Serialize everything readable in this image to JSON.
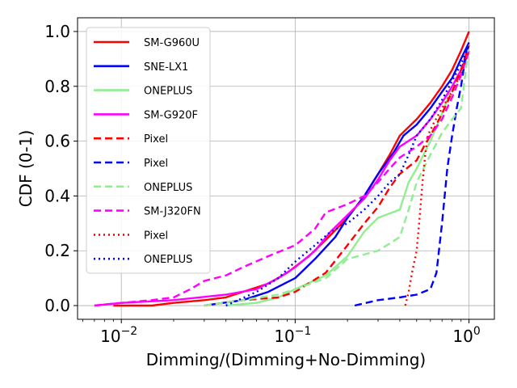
{
  "chart_data": {
    "type": "line",
    "title": "",
    "xlabel": "Dimming/(Dimming+No-Dimming)",
    "ylabel": "CDF (0-1)",
    "xscale": "log",
    "xlim": [
      0.0056,
      1.4
    ],
    "ylim": [
      -0.05,
      1.05
    ],
    "grid": true,
    "legend_position": "top-left",
    "x_ticks": [
      {
        "value": 0.01,
        "base": "10",
        "exp": "−2"
      },
      {
        "value": 0.1,
        "base": "10",
        "exp": "−1"
      },
      {
        "value": 1,
        "base": "10",
        "exp": "0"
      }
    ],
    "y_ticks": [
      {
        "value": 0.0,
        "label": "0.0"
      },
      {
        "value": 0.2,
        "label": "0.2"
      },
      {
        "value": 0.4,
        "label": "0.4"
      },
      {
        "value": 0.6,
        "label": "0.6"
      },
      {
        "value": 0.8,
        "label": "0.8"
      },
      {
        "value": 1.0,
        "label": "1.0"
      }
    ],
    "series": [
      {
        "name": "SM-G960U",
        "color": "#ff0000",
        "style": "solid",
        "points": [
          [
            0.009,
            0.0
          ],
          [
            0.015,
            0.0
          ],
          [
            0.02,
            0.01
          ],
          [
            0.03,
            0.02
          ],
          [
            0.04,
            0.03
          ],
          [
            0.05,
            0.05
          ],
          [
            0.07,
            0.08
          ],
          [
            0.09,
            0.12
          ],
          [
            0.12,
            0.18
          ],
          [
            0.15,
            0.24
          ],
          [
            0.2,
            0.32
          ],
          [
            0.25,
            0.4
          ],
          [
            0.3,
            0.48
          ],
          [
            0.35,
            0.55
          ],
          [
            0.4,
            0.62
          ],
          [
            0.5,
            0.68
          ],
          [
            0.6,
            0.74
          ],
          [
            0.7,
            0.8
          ],
          [
            0.8,
            0.86
          ],
          [
            0.9,
            0.93
          ],
          [
            1.0,
            1.0
          ]
        ]
      },
      {
        "name": "SNE-LX1",
        "color": "#0000ff",
        "style": "solid",
        "points": [
          [
            0.03,
            0.0
          ],
          [
            0.05,
            0.02
          ],
          [
            0.07,
            0.05
          ],
          [
            0.1,
            0.1
          ],
          [
            0.13,
            0.17
          ],
          [
            0.17,
            0.25
          ],
          [
            0.2,
            0.32
          ],
          [
            0.25,
            0.4
          ],
          [
            0.3,
            0.48
          ],
          [
            0.37,
            0.56
          ],
          [
            0.42,
            0.62
          ],
          [
            0.5,
            0.66
          ],
          [
            0.6,
            0.72
          ],
          [
            0.7,
            0.78
          ],
          [
            0.8,
            0.83
          ],
          [
            0.9,
            0.9
          ],
          [
            1.0,
            0.96
          ]
        ]
      },
      {
        "name": "ONEPLUS",
        "color": "#90ee90",
        "style": "solid",
        "points": [
          [
            0.04,
            0.0
          ],
          [
            0.06,
            0.01
          ],
          [
            0.08,
            0.03
          ],
          [
            0.1,
            0.06
          ],
          [
            0.15,
            0.11
          ],
          [
            0.2,
            0.18
          ],
          [
            0.25,
            0.27
          ],
          [
            0.3,
            0.32
          ],
          [
            0.4,
            0.35
          ],
          [
            0.45,
            0.45
          ],
          [
            0.5,
            0.5
          ],
          [
            0.6,
            0.6
          ],
          [
            0.7,
            0.7
          ],
          [
            0.8,
            0.8
          ],
          [
            0.9,
            0.85
          ],
          [
            1.0,
            0.92
          ]
        ]
      },
      {
        "name": "SM-G920F",
        "color": "#ff00ff",
        "style": "solid",
        "points": [
          [
            0.007,
            0.0
          ],
          [
            0.01,
            0.01
          ],
          [
            0.02,
            0.02
          ],
          [
            0.04,
            0.04
          ],
          [
            0.06,
            0.06
          ],
          [
            0.08,
            0.1
          ],
          [
            0.1,
            0.14
          ],
          [
            0.13,
            0.2
          ],
          [
            0.16,
            0.27
          ],
          [
            0.2,
            0.33
          ],
          [
            0.25,
            0.39
          ],
          [
            0.3,
            0.46
          ],
          [
            0.35,
            0.53
          ],
          [
            0.4,
            0.58
          ],
          [
            0.5,
            0.62
          ],
          [
            0.6,
            0.68
          ],
          [
            0.7,
            0.74
          ],
          [
            0.8,
            0.8
          ],
          [
            0.9,
            0.86
          ],
          [
            1.0,
            0.93
          ]
        ]
      },
      {
        "name": "Pixel",
        "color": "#ff0000",
        "style": "dashed",
        "points": [
          [
            0.03,
            0.0
          ],
          [
            0.05,
            0.02
          ],
          [
            0.08,
            0.03
          ],
          [
            0.1,
            0.05
          ],
          [
            0.15,
            0.12
          ],
          [
            0.2,
            0.22
          ],
          [
            0.25,
            0.3
          ],
          [
            0.3,
            0.36
          ],
          [
            0.35,
            0.43
          ],
          [
            0.4,
            0.48
          ],
          [
            0.5,
            0.53
          ],
          [
            0.55,
            0.58
          ],
          [
            0.6,
            0.62
          ],
          [
            0.7,
            0.7
          ],
          [
            0.8,
            0.78
          ],
          [
            0.9,
            0.86
          ],
          [
            1.0,
            0.95
          ]
        ]
      },
      {
        "name": "Pixel",
        "color": "#0000ff",
        "style": "dashed",
        "points": [
          [
            0.22,
            0.0
          ],
          [
            0.3,
            0.02
          ],
          [
            0.4,
            0.03
          ],
          [
            0.5,
            0.04
          ],
          [
            0.6,
            0.06
          ],
          [
            0.65,
            0.12
          ],
          [
            0.7,
            0.3
          ],
          [
            0.75,
            0.5
          ],
          [
            0.8,
            0.62
          ],
          [
            0.85,
            0.72
          ],
          [
            0.9,
            0.8
          ],
          [
            0.95,
            0.9
          ],
          [
            1.0,
            0.96
          ]
        ]
      },
      {
        "name": "ONEPLUS",
        "color": "#90ee90",
        "style": "dashed",
        "points": [
          [
            0.03,
            0.0
          ],
          [
            0.05,
            0.02
          ],
          [
            0.08,
            0.04
          ],
          [
            0.1,
            0.06
          ],
          [
            0.15,
            0.1
          ],
          [
            0.2,
            0.17
          ],
          [
            0.3,
            0.2
          ],
          [
            0.4,
            0.25
          ],
          [
            0.45,
            0.35
          ],
          [
            0.5,
            0.45
          ],
          [
            0.6,
            0.55
          ],
          [
            0.7,
            0.63
          ],
          [
            0.8,
            0.68
          ],
          [
            0.9,
            0.72
          ],
          [
            1.0,
            0.95
          ]
        ]
      },
      {
        "name": "SM-J320FN",
        "color": "#ff00ff",
        "style": "dashed",
        "points": [
          [
            0.007,
            0.0
          ],
          [
            0.01,
            0.01
          ],
          [
            0.015,
            0.02
          ],
          [
            0.02,
            0.03
          ],
          [
            0.025,
            0.06
          ],
          [
            0.03,
            0.09
          ],
          [
            0.04,
            0.11
          ],
          [
            0.05,
            0.14
          ],
          [
            0.07,
            0.18
          ],
          [
            0.1,
            0.22
          ],
          [
            0.13,
            0.28
          ],
          [
            0.15,
            0.34
          ],
          [
            0.2,
            0.37
          ],
          [
            0.25,
            0.4
          ],
          [
            0.3,
            0.45
          ],
          [
            0.35,
            0.5
          ],
          [
            0.4,
            0.54
          ],
          [
            0.5,
            0.58
          ],
          [
            0.6,
            0.62
          ],
          [
            0.7,
            0.68
          ],
          [
            0.8,
            0.76
          ],
          [
            0.9,
            0.84
          ],
          [
            1.0,
            0.93
          ]
        ]
      },
      {
        "name": "Pixel",
        "color": "#ff0000",
        "style": "dotted",
        "points": [
          [
            0.43,
            0.0
          ],
          [
            0.45,
            0.05
          ],
          [
            0.47,
            0.12
          ],
          [
            0.5,
            0.2
          ],
          [
            0.52,
            0.32
          ],
          [
            0.54,
            0.45
          ],
          [
            0.56,
            0.55
          ],
          [
            0.58,
            0.62
          ],
          [
            0.62,
            0.66
          ],
          [
            0.7,
            0.72
          ],
          [
            0.8,
            0.78
          ],
          [
            0.9,
            0.85
          ],
          [
            1.0,
            0.93
          ]
        ]
      },
      {
        "name": "ONEPLUS",
        "color": "#0000ff",
        "style": "dotted",
        "points": [
          [
            0.04,
            0.0
          ],
          [
            0.06,
            0.05
          ],
          [
            0.08,
            0.1
          ],
          [
            0.1,
            0.16
          ],
          [
            0.13,
            0.22
          ],
          [
            0.16,
            0.27
          ],
          [
            0.2,
            0.3
          ],
          [
            0.25,
            0.35
          ],
          [
            0.3,
            0.4
          ],
          [
            0.35,
            0.45
          ],
          [
            0.4,
            0.48
          ],
          [
            0.45,
            0.55
          ],
          [
            0.5,
            0.62
          ],
          [
            0.6,
            0.68
          ],
          [
            0.7,
            0.75
          ],
          [
            0.8,
            0.82
          ],
          [
            0.9,
            0.88
          ],
          [
            1.0,
            0.95
          ]
        ]
      }
    ]
  }
}
